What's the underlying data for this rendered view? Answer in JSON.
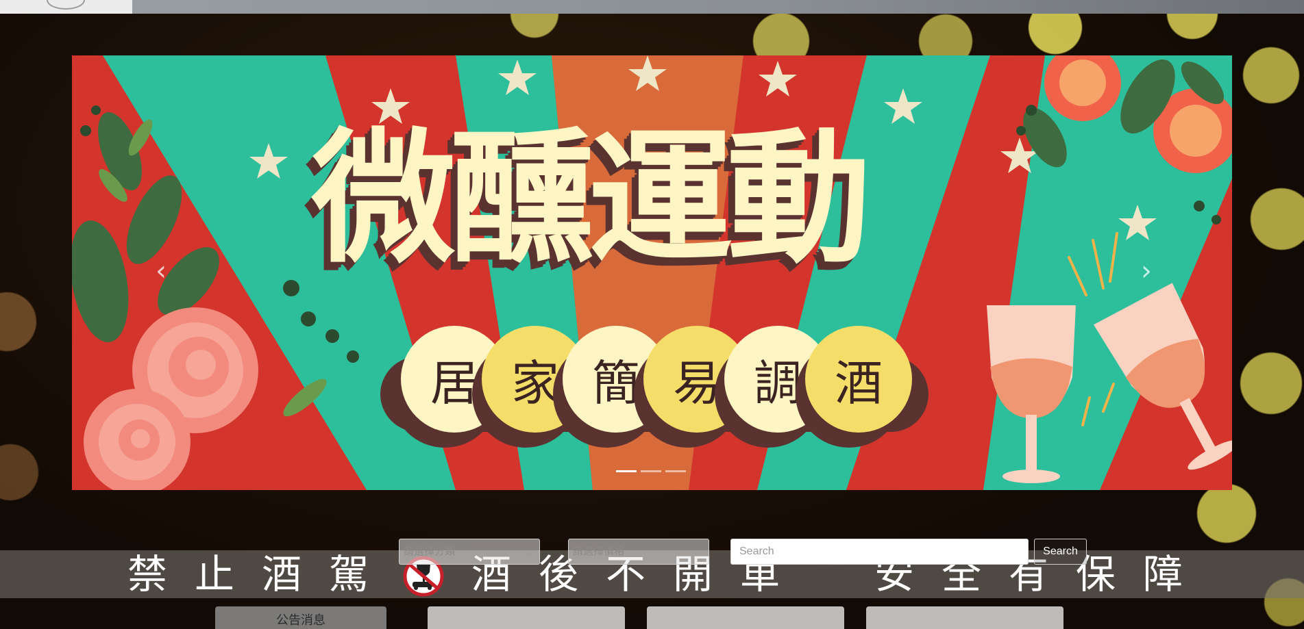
{
  "site": {
    "logo_icon": "site-logo"
  },
  "carousel": {
    "title": "微醺運動",
    "subtitle_chars": [
      "居",
      "家",
      "簡",
      "易",
      "調",
      "酒"
    ],
    "prev_icon": "chevron-left-icon",
    "next_icon": "chevron-right-icon",
    "prev_label": "‹",
    "next_label": "›",
    "slide_count": 3,
    "active_slide": 1
  },
  "filters": {
    "category_placeholder": "請選擇分類",
    "price_placeholder": "請選擇價格",
    "search_placeholder": "Search",
    "search_button_label": "Search"
  },
  "marquee": {
    "text_left": "禁止酒駕",
    "text_right": "酒後不開車　安全有保障",
    "icon": "no-drink-driving-icon"
  },
  "tabs": {
    "news_label": "公告消息"
  },
  "colors": {
    "banner_red": "#d3352d",
    "banner_teal": "#2dbf9b",
    "banner_cream": "#fdf5c4",
    "banner_yellow": "#f5dd6a",
    "banner_shadow": "#5a3331"
  }
}
